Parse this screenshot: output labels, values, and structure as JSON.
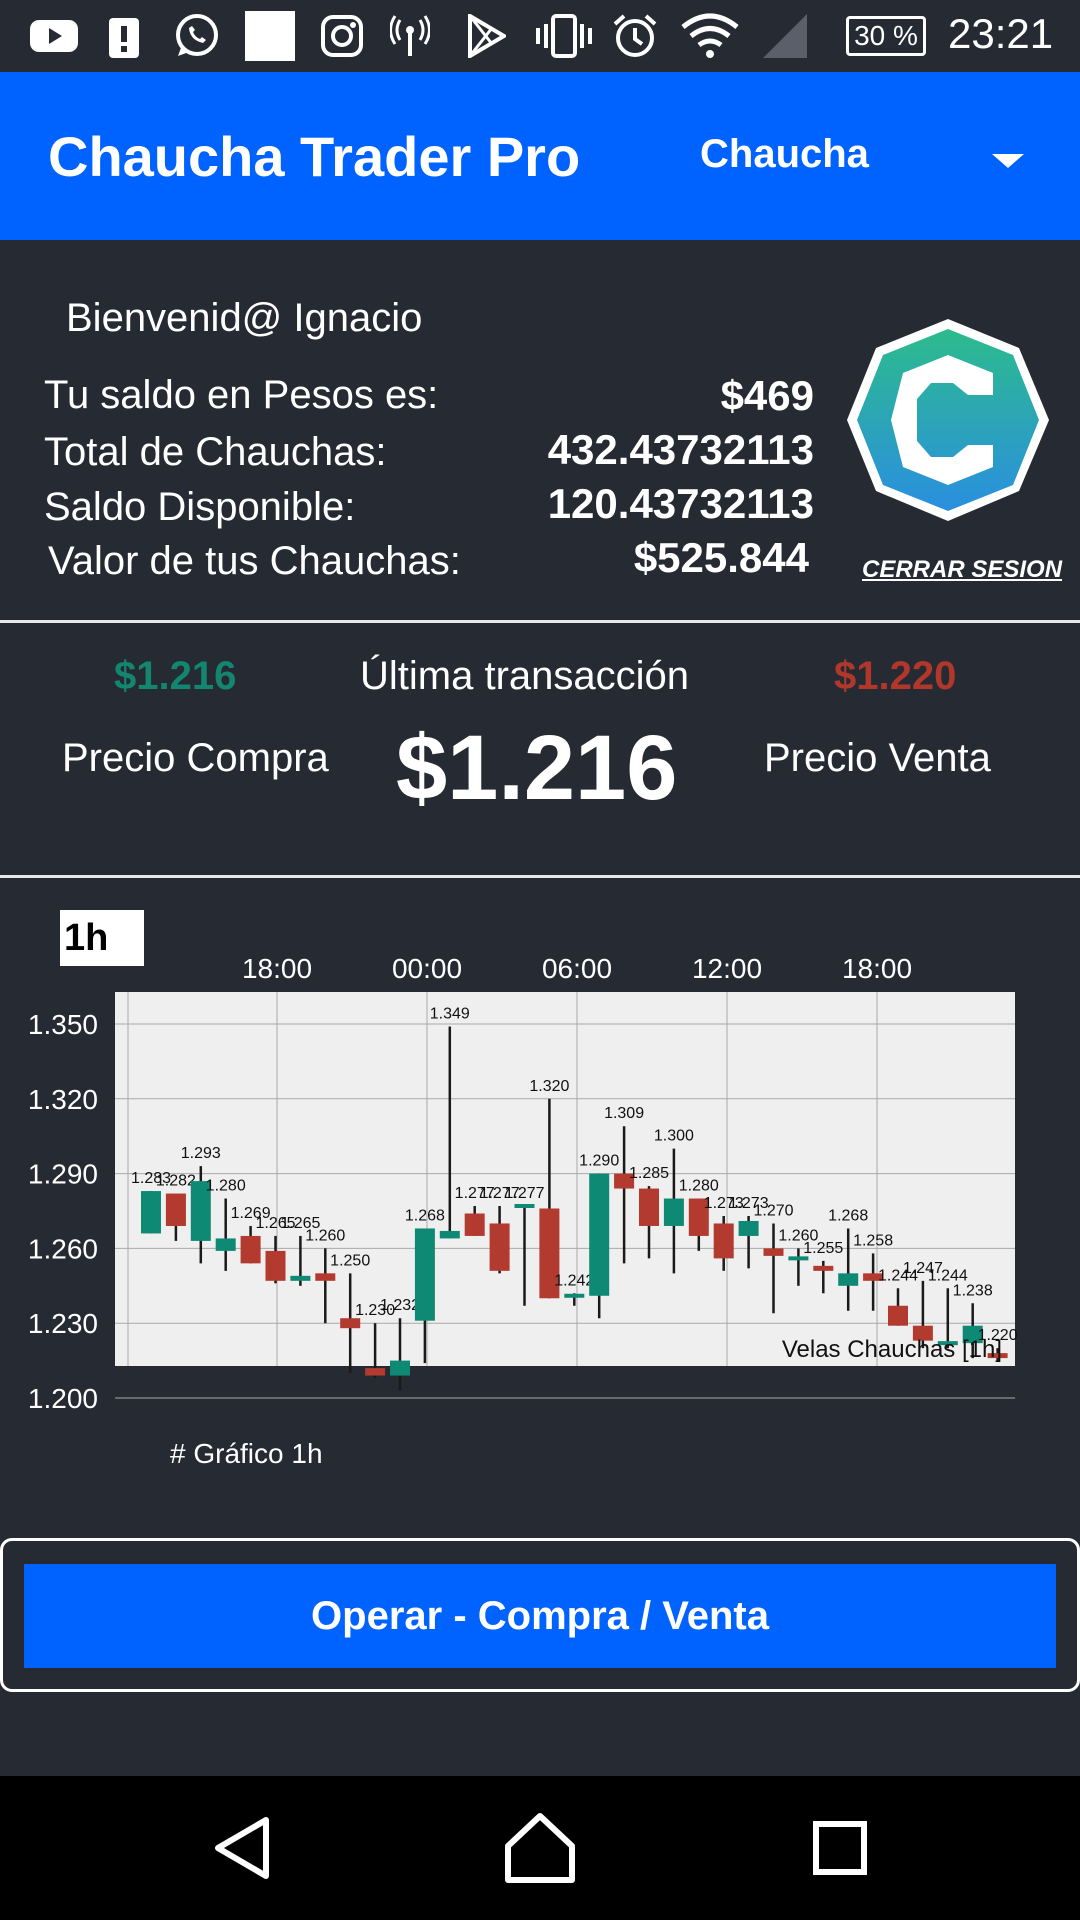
{
  "status_bar": {
    "icons": [
      "youtube-icon",
      "alert-icon",
      "whatsapp-icon",
      "notification-square-icon",
      "instagram-icon",
      "signal-tower-icon",
      "play-store-icon",
      "vibrate-icon",
      "alarm-icon",
      "wifi-icon",
      "cell-signal-icon"
    ],
    "battery": "30 %",
    "time": "23:21"
  },
  "app_bar": {
    "title": "Chaucha Trader Pro",
    "selected_coin": "Chaucha",
    "color": "#0063ff"
  },
  "account": {
    "welcome": "Bienvenid@ Ignacio",
    "rows": [
      {
        "label": "Tu saldo en Pesos es:",
        "value": "$469"
      },
      {
        "label": "Total de Chauchas:",
        "value": "432.43732113"
      },
      {
        "label": "Saldo Disponible:",
        "value": "120.43732113"
      },
      {
        "label": "Valor de tus Chauchas:",
        "value": "$525.844"
      }
    ],
    "logout": "CERRAR SESION"
  },
  "prices": {
    "buy_value": "$1.216",
    "buy_label": "Precio Compra",
    "last_label": "Última transacción",
    "last_value": "$1.216",
    "sell_value": "$1.220",
    "sell_label": "Precio Venta",
    "buy_color": "#13866f",
    "sell_color": "#b2372b"
  },
  "chart": {
    "interval_tab": "1h",
    "caption": "# Gráfico 1h"
  },
  "chart_data": {
    "type": "candlestick",
    "title": "Velas Chauchas [1h]",
    "x_tick_labels": [
      "18:00",
      "00:00",
      "06:00",
      "12:00",
      "18:00"
    ],
    "y_tick_labels": [
      "1.350",
      "1.320",
      "1.290",
      "1.260",
      "1.230",
      "1.200"
    ],
    "ylim": [
      1.2,
      1.35
    ],
    "up_color": "#0e8a74",
    "down_color": "#b33a2e",
    "grid": true,
    "candles": [
      {
        "open": 1.266,
        "close": 1.283,
        "high": 1.283,
        "low": 1.266,
        "label": "1.283"
      },
      {
        "open": 1.282,
        "close": 1.269,
        "high": 1.282,
        "low": 1.263,
        "label": "1.282"
      },
      {
        "open": 1.263,
        "close": 1.287,
        "high": 1.293,
        "low": 1.254,
        "label": "1.293"
      },
      {
        "open": 1.259,
        "close": 1.264,
        "high": 1.28,
        "low": 1.251,
        "label": "1.280"
      },
      {
        "open": 1.265,
        "close": 1.254,
        "high": 1.269,
        "low": 1.254,
        "label": "1.269"
      },
      {
        "open": 1.259,
        "close": 1.247,
        "high": 1.265,
        "low": 1.246,
        "label": "1.265"
      },
      {
        "open": 1.247,
        "close": 1.249,
        "high": 1.265,
        "low": 1.245,
        "label": "1.265"
      },
      {
        "open": 1.25,
        "close": 1.247,
        "high": 1.26,
        "low": 1.23,
        "label": "1.260"
      },
      {
        "open": 1.232,
        "close": 1.228,
        "high": 1.25,
        "low": 1.21,
        "label": "1.250"
      },
      {
        "open": 1.212,
        "close": 1.209,
        "high": 1.23,
        "low": 1.208,
        "label": "1.230"
      },
      {
        "open": 1.209,
        "close": 1.215,
        "high": 1.232,
        "low": 1.203,
        "label": "1.232"
      },
      {
        "open": 1.231,
        "close": 1.268,
        "high": 1.268,
        "low": 1.214,
        "label": "1.268"
      },
      {
        "open": 1.264,
        "close": 1.267,
        "high": 1.349,
        "low": 1.264,
        "label": "1.349"
      },
      {
        "open": 1.274,
        "close": 1.265,
        "high": 1.277,
        "low": 1.265,
        "label": "1.277"
      },
      {
        "open": 1.27,
        "close": 1.251,
        "high": 1.277,
        "low": 1.25,
        "label": "1.277"
      },
      {
        "open": 1.277,
        "close": 1.277,
        "high": 1.277,
        "low": 1.237,
        "label": "1.277"
      },
      {
        "open": 1.276,
        "close": 1.24,
        "high": 1.32,
        "low": 1.24,
        "label": "1.320"
      },
      {
        "open": 1.24,
        "close": 1.241,
        "high": 1.242,
        "low": 1.237,
        "label": "1.242"
      },
      {
        "open": 1.241,
        "close": 1.29,
        "high": 1.29,
        "low": 1.232,
        "label": "1.290"
      },
      {
        "open": 1.29,
        "close": 1.284,
        "high": 1.309,
        "low": 1.254,
        "label": "1.309"
      },
      {
        "open": 1.284,
        "close": 1.269,
        "high": 1.285,
        "low": 1.256,
        "label": "1.285"
      },
      {
        "open": 1.269,
        "close": 1.28,
        "high": 1.3,
        "low": 1.25,
        "label": "1.300"
      },
      {
        "open": 1.28,
        "close": 1.265,
        "high": 1.28,
        "low": 1.259,
        "label": "1.280"
      },
      {
        "open": 1.27,
        "close": 1.256,
        "high": 1.273,
        "low": 1.251,
        "label": "1.273"
      },
      {
        "open": 1.265,
        "close": 1.271,
        "high": 1.273,
        "low": 1.252,
        "label": "1.273"
      },
      {
        "open": 1.26,
        "close": 1.257,
        "high": 1.27,
        "low": 1.234,
        "label": "1.270"
      },
      {
        "open": 1.256,
        "close": 1.256,
        "high": 1.26,
        "low": 1.245,
        "label": "1.260"
      },
      {
        "open": 1.253,
        "close": 1.251,
        "high": 1.255,
        "low": 1.242,
        "label": "1.255"
      },
      {
        "open": 1.245,
        "close": 1.25,
        "high": 1.268,
        "low": 1.235,
        "label": "1.268"
      },
      {
        "open": 1.25,
        "close": 1.247,
        "high": 1.258,
        "low": 1.235,
        "label": "1.258"
      },
      {
        "open": 1.237,
        "close": 1.229,
        "high": 1.244,
        "low": 1.229,
        "label": "1.244"
      },
      {
        "open": 1.229,
        "close": 1.223,
        "high": 1.247,
        "low": 1.22,
        "label": "1.247"
      },
      {
        "open": 1.222,
        "close": 1.222,
        "high": 1.244,
        "low": 1.22,
        "label": "1.244"
      },
      {
        "open": 1.222,
        "close": 1.229,
        "high": 1.238,
        "low": 1.216,
        "label": "1.238"
      },
      {
        "open": 1.218,
        "close": 1.216,
        "high": 1.22,
        "low": 1.215,
        "label": "1.220"
      }
    ]
  },
  "action": {
    "operate_label": "Operar - Compra / Venta"
  },
  "nav": {
    "buttons": [
      "back-icon",
      "home-icon",
      "recents-icon"
    ]
  }
}
